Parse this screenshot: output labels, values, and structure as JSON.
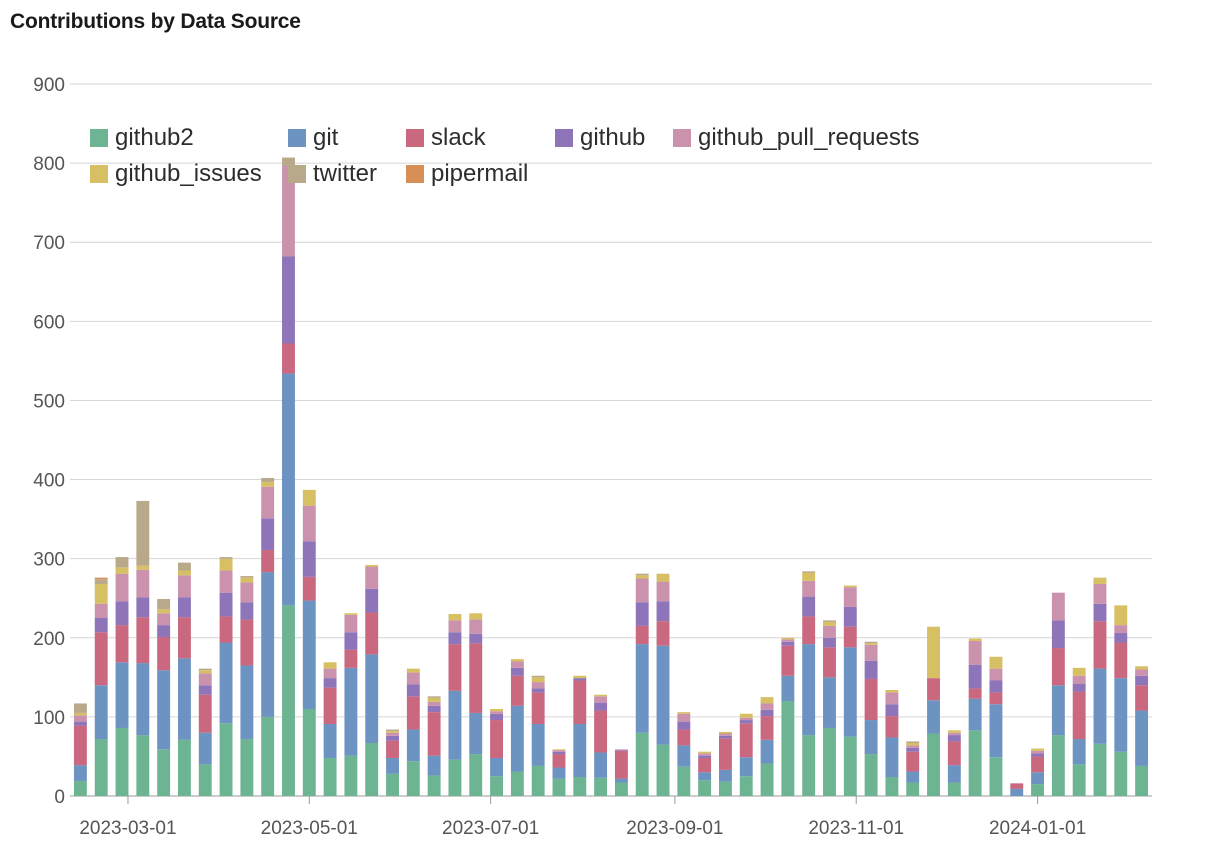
{
  "title": "Contributions by Data Source",
  "chart_data": {
    "type": "bar",
    "stacked": true,
    "title": "Contributions by Data Source",
    "xlabel": "",
    "ylabel": "",
    "ylim": [
      0,
      900
    ],
    "yticks": [
      0,
      100,
      200,
      300,
      400,
      500,
      600,
      700,
      800,
      900
    ],
    "xticks": [
      "2023-03-01",
      "2023-05-01",
      "2023-07-01",
      "2023-09-01",
      "2023-11-01",
      "2024-01-01"
    ],
    "grid": true,
    "legend_position": "top-left",
    "x": [
      "2023-02-13",
      "2023-02-20",
      "2023-02-27",
      "2023-03-06",
      "2023-03-13",
      "2023-03-20",
      "2023-03-27",
      "2023-04-03",
      "2023-04-10",
      "2023-04-17",
      "2023-04-24",
      "2023-05-01",
      "2023-05-08",
      "2023-05-15",
      "2023-05-22",
      "2023-05-29",
      "2023-06-05",
      "2023-06-12",
      "2023-06-19",
      "2023-06-26",
      "2023-07-03",
      "2023-07-10",
      "2023-07-17",
      "2023-07-24",
      "2023-07-31",
      "2023-08-07",
      "2023-08-14",
      "2023-08-21",
      "2023-08-28",
      "2023-09-04",
      "2023-09-11",
      "2023-09-18",
      "2023-09-25",
      "2023-10-02",
      "2023-10-09",
      "2023-10-16",
      "2023-10-23",
      "2023-10-30",
      "2023-11-06",
      "2023-11-13",
      "2023-11-20",
      "2023-11-27",
      "2023-12-04",
      "2023-12-11",
      "2023-12-18",
      "2023-12-25",
      "2024-01-01",
      "2024-01-08",
      "2024-01-15",
      "2024-01-22",
      "2024-01-29",
      "2024-02-05"
    ],
    "series": [
      {
        "name": "github2",
        "color": "#6db592",
        "values": [
          19,
          72,
          86,
          77,
          59,
          71,
          40,
          92,
          72,
          100,
          241,
          110,
          48,
          51,
          67,
          28,
          44,
          26,
          46,
          53,
          25,
          31,
          38,
          22,
          24,
          23,
          17,
          80,
          65,
          37,
          20,
          18,
          25,
          41,
          120,
          77,
          86,
          75,
          53,
          24,
          17,
          79,
          17,
          83,
          49,
          0,
          15,
          77,
          40,
          66,
          56,
          38
        ]
      },
      {
        "name": "git",
        "color": "#6d93c2",
        "values": [
          20,
          68,
          83,
          91,
          100,
          103,
          40,
          102,
          93,
          183,
          293,
          137,
          43,
          111,
          112,
          20,
          40,
          25,
          87,
          52,
          23,
          83,
          53,
          14,
          67,
          32,
          5,
          112,
          125,
          27,
          10,
          15,
          24,
          30,
          32,
          115,
          64,
          113,
          43,
          50,
          14,
          42,
          22,
          40,
          67,
          9,
          15,
          63,
          32,
          95,
          93,
          70
        ]
      },
      {
        "name": "slack",
        "color": "#c9687f",
        "values": [
          50,
          67,
          47,
          58,
          42,
          52,
          48,
          33,
          58,
          28,
          38,
          30,
          46,
          23,
          53,
          22,
          42,
          55,
          59,
          88,
          48,
          38,
          40,
          17,
          55,
          53,
          35,
          23,
          31,
          20,
          18,
          40,
          43,
          30,
          38,
          35,
          38,
          26,
          52,
          27,
          25,
          28,
          30,
          13,
          15,
          7,
          20,
          47,
          60,
          60,
          45,
          32
        ]
      },
      {
        "name": "github",
        "color": "#8e74b9",
        "values": [
          5,
          18,
          30,
          25,
          15,
          25,
          12,
          30,
          22,
          40,
          110,
          45,
          12,
          22,
          30,
          6,
          15,
          8,
          15,
          12,
          8,
          10,
          5,
          3,
          3,
          10,
          1,
          30,
          25,
          10,
          3,
          3,
          4,
          8,
          5,
          25,
          12,
          25,
          23,
          15,
          5,
          0,
          8,
          30,
          15,
          0,
          4,
          35,
          10,
          22,
          12,
          12
        ]
      },
      {
        "name": "github_pull_requests",
        "color": "#cb92ad",
        "values": [
          8,
          18,
          35,
          35,
          15,
          28,
          15,
          28,
          25,
          40,
          115,
          45,
          12,
          22,
          28,
          4,
          15,
          5,
          15,
          18,
          3,
          8,
          8,
          2,
          0,
          8,
          1,
          30,
          25,
          10,
          3,
          3,
          3,
          8,
          3,
          20,
          15,
          25,
          20,
          15,
          3,
          0,
          3,
          30,
          15,
          0,
          3,
          35,
          10,
          25,
          10,
          8
        ]
      },
      {
        "name": "github_issues",
        "color": "#d6c063",
        "values": [
          3,
          25,
          8,
          5,
          5,
          6,
          4,
          15,
          6,
          6,
          0,
          20,
          8,
          2,
          2,
          2,
          5,
          5,
          8,
          8,
          3,
          3,
          6,
          1,
          3,
          2,
          0,
          4,
          10,
          2,
          2,
          2,
          5,
          8,
          2,
          10,
          5,
          2,
          2,
          3,
          3,
          65,
          3,
          3,
          15,
          0,
          3,
          0,
          10,
          8,
          25,
          4
        ]
      },
      {
        "name": "twitter",
        "color": "#b9a98b",
        "values": [
          12,
          6,
          13,
          82,
          13,
          10,
          2,
          2,
          2,
          5,
          10,
          0,
          0,
          0,
          0,
          2,
          0,
          2,
          0,
          0,
          0,
          0,
          2,
          0,
          0,
          0,
          0,
          2,
          0,
          0,
          0,
          0,
          0,
          0,
          0,
          2,
          2,
          0,
          2,
          0,
          2,
          0,
          0,
          0,
          0,
          0,
          0,
          0,
          0,
          0,
          0,
          0
        ]
      },
      {
        "name": "pipermail",
        "color": "#d78f56",
        "values": [
          0,
          2,
          0,
          0,
          0,
          0,
          0,
          0,
          0,
          0,
          0,
          0,
          0,
          0,
          0,
          0,
          0,
          0,
          0,
          0,
          0,
          0,
          0,
          0,
          0,
          0,
          0,
          0,
          0,
          0,
          0,
          0,
          0,
          0,
          0,
          0,
          0,
          0,
          0,
          0,
          0,
          0,
          0,
          0,
          0,
          0,
          0,
          0,
          0,
          0,
          0,
          0
        ]
      }
    ]
  }
}
